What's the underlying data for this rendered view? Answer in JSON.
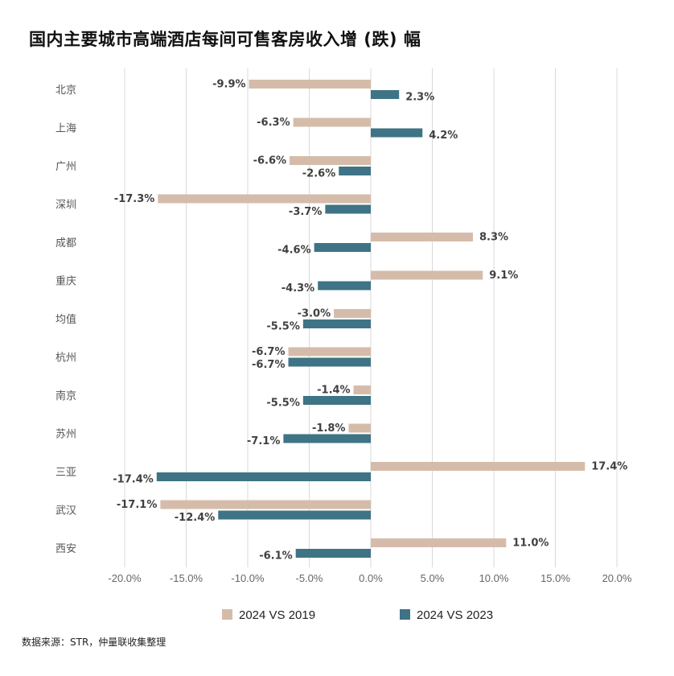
{
  "chart_data": {
    "type": "bar",
    "orientation": "horizontal",
    "title": "国内主要城市高端酒店每间可售客房收入增 (跌) 幅",
    "categories": [
      "北京",
      "上海",
      "广州",
      "深圳",
      "成都",
      "重庆",
      "均值",
      "杭州",
      "南京",
      "苏州",
      "三亚",
      "武汉",
      "西安"
    ],
    "series": [
      {
        "name": "2024 VS 2019",
        "color": "#d5bcaa",
        "values": [
          -9.9,
          -6.3,
          -6.6,
          -17.3,
          8.3,
          9.1,
          -3.0,
          -6.7,
          -1.4,
          -1.8,
          17.4,
          -17.1,
          11.0
        ]
      },
      {
        "name": "2024 VS 2023",
        "color": "#3f7386",
        "values": [
          2.3,
          4.2,
          -2.6,
          -3.7,
          -4.6,
          -4.3,
          -5.5,
          -6.7,
          -5.5,
          -7.1,
          -17.4,
          -12.4,
          -6.1
        ]
      }
    ],
    "xlim": [
      -20,
      20
    ],
    "xticks": [
      "-20.0%",
      "-15.0%",
      "-10.0%",
      "-5.0%",
      "0.0%",
      "5.0%",
      "10.0%",
      "15.0%",
      "20.0%"
    ],
    "grid": true,
    "legend": "bottom",
    "unit": "%"
  },
  "source": "数据来源：STR，仲量联收集整理"
}
